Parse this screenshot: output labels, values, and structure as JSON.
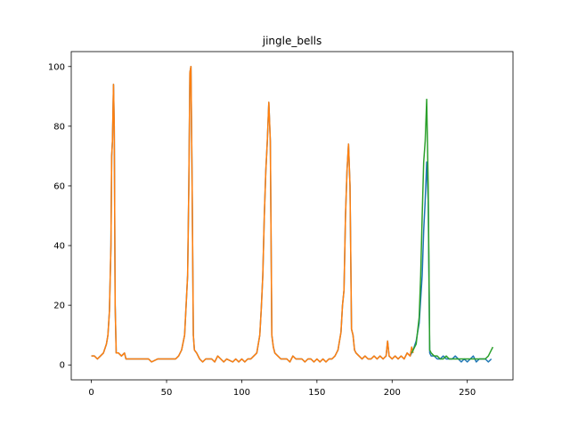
{
  "chart_data": {
    "type": "line",
    "title": "jingle_bells",
    "xlabel": "",
    "ylabel": "",
    "xlim": [
      -13.4,
      280.4
    ],
    "ylim": [
      -5,
      105
    ],
    "grid": false,
    "legend": "none",
    "x_ticks": [
      0,
      50,
      100,
      150,
      200,
      250
    ],
    "y_ticks": [
      0,
      20,
      40,
      60,
      80,
      100
    ],
    "series": [
      {
        "color": "#1f77b4",
        "points": [
          [
            0,
            3
          ],
          [
            2,
            3
          ],
          [
            4,
            2
          ],
          [
            6,
            3
          ],
          [
            8,
            4
          ],
          [
            10,
            7
          ],
          [
            11,
            10
          ],
          [
            12,
            18
          ],
          [
            13,
            40
          ],
          [
            13.5,
            70
          ],
          [
            14,
            75
          ],
          [
            14.7,
            94
          ],
          [
            15.2,
            80
          ],
          [
            15.8,
            20
          ],
          [
            16.5,
            4
          ],
          [
            18,
            4
          ],
          [
            20,
            3
          ],
          [
            22,
            4
          ],
          [
            23,
            2
          ],
          [
            30,
            2
          ],
          [
            38,
            2
          ],
          [
            40,
            1
          ],
          [
            44,
            2
          ],
          [
            48,
            2
          ],
          [
            52,
            2
          ],
          [
            56,
            2
          ],
          [
            58,
            3
          ],
          [
            60,
            5
          ],
          [
            62,
            10
          ],
          [
            63,
            20
          ],
          [
            64,
            30
          ],
          [
            64.8,
            60
          ],
          [
            65.5,
            98
          ],
          [
            66.2,
            100
          ],
          [
            67,
            60
          ],
          [
            67.8,
            10
          ],
          [
            68.5,
            5
          ],
          [
            70,
            4
          ],
          [
            72,
            2
          ],
          [
            74,
            1
          ],
          [
            76,
            2
          ],
          [
            80,
            2
          ],
          [
            82,
            1
          ],
          [
            84,
            3
          ],
          [
            86,
            2
          ],
          [
            88,
            1
          ],
          [
            90,
            2
          ],
          [
            94,
            1
          ],
          [
            96,
            2
          ],
          [
            98,
            1
          ],
          [
            100,
            2
          ],
          [
            102,
            1
          ],
          [
            104,
            2
          ],
          [
            106,
            2
          ],
          [
            108,
            3
          ],
          [
            110,
            4
          ],
          [
            112,
            10
          ],
          [
            113,
            19
          ],
          [
            114,
            30
          ],
          [
            115,
            50
          ],
          [
            116,
            65
          ],
          [
            117,
            75
          ],
          [
            118,
            88
          ],
          [
            119,
            75
          ],
          [
            120,
            10
          ],
          [
            121,
            6
          ],
          [
            122,
            4
          ],
          [
            124,
            3
          ],
          [
            126,
            2
          ],
          [
            130,
            2
          ],
          [
            132,
            1
          ],
          [
            134,
            3
          ],
          [
            136,
            2
          ],
          [
            140,
            2
          ],
          [
            142,
            1
          ],
          [
            144,
            2
          ],
          [
            146,
            2
          ],
          [
            148,
            1
          ],
          [
            150,
            2
          ],
          [
            152,
            1
          ],
          [
            154,
            2
          ],
          [
            156,
            1
          ],
          [
            158,
            2
          ],
          [
            160,
            2
          ],
          [
            162,
            3
          ],
          [
            164,
            5
          ],
          [
            166,
            11
          ],
          [
            167,
            20
          ],
          [
            168,
            25
          ],
          [
            169,
            50
          ],
          [
            170,
            65
          ],
          [
            171,
            74
          ],
          [
            172,
            60
          ],
          [
            173,
            12
          ],
          [
            174,
            10
          ],
          [
            175,
            5
          ],
          [
            176,
            4
          ],
          [
            178,
            3
          ],
          [
            180,
            2
          ],
          [
            182,
            3
          ],
          [
            184,
            2
          ],
          [
            186,
            2
          ],
          [
            188,
            3
          ],
          [
            190,
            2
          ],
          [
            192,
            3
          ],
          [
            194,
            2
          ],
          [
            196,
            3
          ],
          [
            197,
            8
          ],
          [
            198,
            3
          ],
          [
            200,
            2
          ],
          [
            202,
            3
          ],
          [
            204,
            2
          ],
          [
            206,
            3
          ],
          [
            208,
            2
          ],
          [
            210,
            4
          ],
          [
            212,
            3
          ],
          [
            214,
            5
          ],
          [
            216,
            8
          ],
          [
            218,
            14
          ],
          [
            220,
            30
          ],
          [
            221,
            45
          ],
          [
            222,
            55
          ],
          [
            223,
            68
          ],
          [
            224,
            55
          ],
          [
            225,
            4
          ],
          [
            226,
            3
          ],
          [
            228,
            3
          ],
          [
            230,
            2
          ],
          [
            232,
            2
          ],
          [
            234,
            3
          ],
          [
            236,
            2
          ],
          [
            238,
            2
          ],
          [
            240,
            2
          ],
          [
            242,
            3
          ],
          [
            244,
            2
          ],
          [
            246,
            1
          ],
          [
            248,
            2
          ],
          [
            250,
            1
          ],
          [
            252,
            2
          ],
          [
            254,
            3
          ],
          [
            256,
            1
          ],
          [
            258,
            2
          ],
          [
            260,
            2
          ],
          [
            262,
            2
          ],
          [
            264,
            1
          ],
          [
            266,
            2
          ]
        ]
      },
      {
        "color": "#ff7f0e",
        "points": [
          [
            0,
            3
          ],
          [
            2,
            3
          ],
          [
            4,
            2
          ],
          [
            6,
            3
          ],
          [
            8,
            4
          ],
          [
            10,
            7
          ],
          [
            11,
            10
          ],
          [
            12,
            18
          ],
          [
            13,
            40
          ],
          [
            13.5,
            70
          ],
          [
            14,
            75
          ],
          [
            14.7,
            94
          ],
          [
            15.2,
            80
          ],
          [
            15.8,
            20
          ],
          [
            16.5,
            4
          ],
          [
            18,
            4
          ],
          [
            20,
            3
          ],
          [
            22,
            4
          ],
          [
            23,
            2
          ],
          [
            30,
            2
          ],
          [
            38,
            2
          ],
          [
            40,
            1
          ],
          [
            44,
            2
          ],
          [
            48,
            2
          ],
          [
            52,
            2
          ],
          [
            56,
            2
          ],
          [
            58,
            3
          ],
          [
            60,
            5
          ],
          [
            62,
            10
          ],
          [
            63,
            20
          ],
          [
            64,
            30
          ],
          [
            64.8,
            60
          ],
          [
            65.5,
            98
          ],
          [
            66.2,
            100
          ],
          [
            67,
            60
          ],
          [
            67.8,
            10
          ],
          [
            68.5,
            5
          ],
          [
            70,
            4
          ],
          [
            72,
            2
          ],
          [
            74,
            1
          ],
          [
            76,
            2
          ],
          [
            80,
            2
          ],
          [
            82,
            1
          ],
          [
            84,
            3
          ],
          [
            86,
            2
          ],
          [
            88,
            1
          ],
          [
            90,
            2
          ],
          [
            94,
            1
          ],
          [
            96,
            2
          ],
          [
            98,
            1
          ],
          [
            100,
            2
          ],
          [
            102,
            1
          ],
          [
            104,
            2
          ],
          [
            106,
            2
          ],
          [
            108,
            3
          ],
          [
            110,
            4
          ],
          [
            112,
            10
          ],
          [
            113,
            19
          ],
          [
            114,
            30
          ],
          [
            115,
            50
          ],
          [
            116,
            65
          ],
          [
            117,
            75
          ],
          [
            118,
            88
          ],
          [
            119,
            75
          ],
          [
            120,
            10
          ],
          [
            121,
            6
          ],
          [
            122,
            4
          ],
          [
            124,
            3
          ],
          [
            126,
            2
          ],
          [
            130,
            2
          ],
          [
            132,
            1
          ],
          [
            134,
            3
          ],
          [
            136,
            2
          ],
          [
            140,
            2
          ],
          [
            142,
            1
          ],
          [
            144,
            2
          ],
          [
            146,
            2
          ],
          [
            148,
            1
          ],
          [
            150,
            2
          ],
          [
            152,
            1
          ],
          [
            154,
            2
          ],
          [
            156,
            1
          ],
          [
            158,
            2
          ],
          [
            160,
            2
          ],
          [
            162,
            3
          ],
          [
            164,
            5
          ],
          [
            166,
            11
          ],
          [
            167,
            20
          ],
          [
            168,
            25
          ],
          [
            169,
            50
          ],
          [
            170,
            65
          ],
          [
            171,
            74
          ],
          [
            172,
            60
          ],
          [
            173,
            12
          ],
          [
            174,
            10
          ],
          [
            175,
            5
          ],
          [
            176,
            4
          ],
          [
            178,
            3
          ],
          [
            180,
            2
          ],
          [
            182,
            3
          ],
          [
            184,
            2
          ],
          [
            186,
            2
          ],
          [
            188,
            3
          ],
          [
            190,
            2
          ],
          [
            192,
            3
          ],
          [
            194,
            2
          ],
          [
            196,
            3
          ],
          [
            197,
            8
          ],
          [
            198,
            3
          ],
          [
            200,
            2
          ],
          [
            202,
            3
          ],
          [
            204,
            2
          ],
          [
            206,
            3
          ],
          [
            208,
            2
          ],
          [
            210,
            4
          ],
          [
            212,
            3
          ],
          [
            213,
            6
          ],
          [
            214,
            4
          ]
        ]
      },
      {
        "color": "#2ca02c",
        "points": [
          [
            213,
            4
          ],
          [
            214,
            5
          ],
          [
            216,
            7
          ],
          [
            218,
            16
          ],
          [
            219,
            30
          ],
          [
            220,
            50
          ],
          [
            221,
            68
          ],
          [
            222,
            75
          ],
          [
            223,
            89
          ],
          [
            224,
            60
          ],
          [
            225,
            5
          ],
          [
            226,
            4
          ],
          [
            228,
            3
          ],
          [
            230,
            3
          ],
          [
            232,
            2
          ],
          [
            234,
            2
          ],
          [
            236,
            3
          ],
          [
            238,
            2
          ],
          [
            240,
            2
          ],
          [
            242,
            2
          ],
          [
            244,
            2
          ],
          [
            246,
            2
          ],
          [
            248,
            2
          ],
          [
            250,
            2
          ],
          [
            252,
            2
          ],
          [
            254,
            2
          ],
          [
            256,
            2
          ],
          [
            258,
            2
          ],
          [
            260,
            2
          ],
          [
            262,
            2
          ],
          [
            264,
            3
          ],
          [
            265,
            4
          ],
          [
            266,
            5
          ],
          [
            267,
            6
          ]
        ]
      }
    ]
  }
}
